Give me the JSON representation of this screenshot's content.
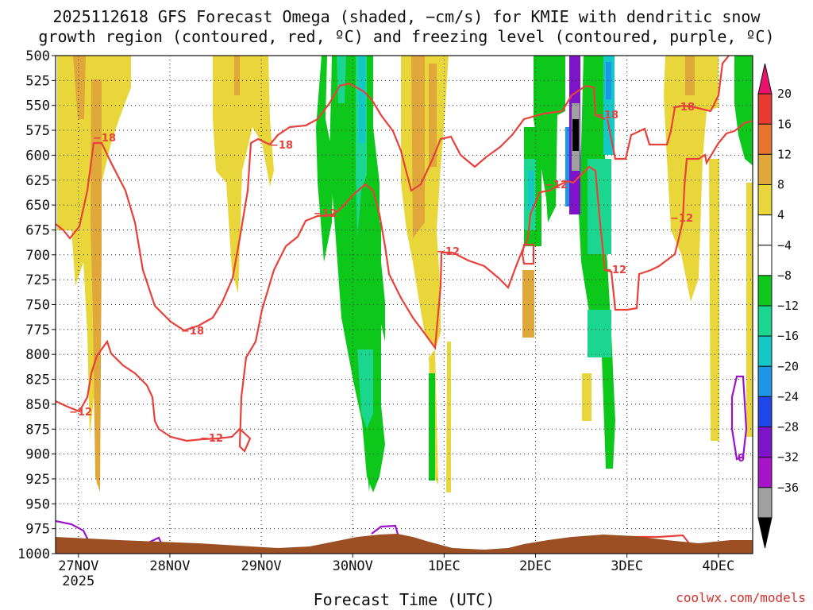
{
  "chart_data": {
    "type": "heatmap",
    "title_line1": "2025112618 GFS Forecast Omega (shaded, −cm/s) for KMIE with dendritic snow",
    "title_line2": "growth region (contoured, red, ºC) and freezing level (contoured, purple, ºC)",
    "xlabel": "Forecast Time (UTC)",
    "credit": "coolwx.com/models",
    "y_ticks": [
      "500",
      "525",
      "550",
      "575",
      "600",
      "625",
      "650",
      "675",
      "700",
      "725",
      "750",
      "775",
      "800",
      "825",
      "850",
      "875",
      "900",
      "925",
      "950",
      "975",
      "1000"
    ],
    "ylim": [
      1000,
      500
    ],
    "x_ticks": [
      {
        "label": "27NOV",
        "sub": "2025",
        "hour": 3
      },
      {
        "label": "28NOV",
        "sub": "",
        "hour": 27
      },
      {
        "label": "29NOV",
        "sub": "",
        "hour": 51
      },
      {
        "label": "30NOV",
        "sub": "",
        "hour": 75
      },
      {
        "label": "1DEC",
        "sub": "",
        "hour": 99
      },
      {
        "label": "2DEC",
        "sub": "",
        "hour": 123
      },
      {
        "label": "3DEC",
        "sub": "",
        "hour": 147
      },
      {
        "label": "4DEC",
        "sub": "",
        "hour": 171
      }
    ],
    "xlim": [
      -3,
      180
    ],
    "colorbar": {
      "labels": [
        "20",
        "16",
        "12",
        "8",
        "4",
        "−4",
        "−8",
        "−12",
        "−16",
        "−20",
        "−24",
        "−28",
        "−32",
        "−36"
      ],
      "bins": [
        "#e8136a",
        "#e83a2e",
        "#e8752e",
        "#e0a83a",
        "#e8d63a",
        "#ffffff",
        "#ffffff",
        "#0dc81a",
        "#1ad68f",
        "#14c8c8",
        "#1e96e8",
        "#1e46e8",
        "#7d14c8",
        "#a514c8",
        "#a0a0a0",
        "#000000"
      ]
    },
    "contour_labels": {
      "dgz_red": [
        "−18",
        "−18",
        "−18",
        "−12",
        "−12",
        "−12",
        "−12",
        "−12",
        "−18",
        "−12",
        "−12",
        "−18",
        "−12"
      ],
      "freezing_purple": [
        "0"
      ]
    },
    "terrain_color": "#9b4f22",
    "dgz_color": "#e8413b",
    "freezing_color": "#9b12c8"
  }
}
